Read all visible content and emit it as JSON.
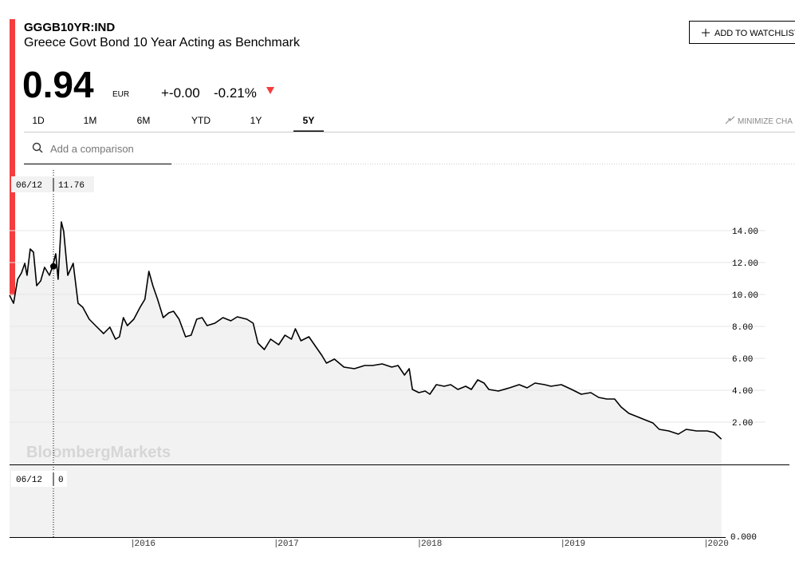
{
  "header": {
    "ticker": "GGGB10YR:IND",
    "name": "Greece Govt Bond 10 Year Acting as Benchmark",
    "price": 0.94,
    "currency": "EUR",
    "change": "+-0.00",
    "change_pct": "-0.21%",
    "watchlist_button": "ADD TO WATCHLIST",
    "minimize": "MINIMIZE CHA"
  },
  "tabs": [
    "1D",
    "1M",
    "6M",
    "YTD",
    "1Y",
    "5Y"
  ],
  "active_tab": "5Y",
  "comparison_placeholder": "Add a comparison",
  "watermark": "BloombergMarkets",
  "chart_data": {
    "type": "line",
    "color": "#000000",
    "grid": true,
    "x": [
      2015.14,
      2015.168,
      2015.196,
      2015.223,
      2015.246,
      2015.262,
      2015.284,
      2015.307,
      2015.329,
      2015.357,
      2015.384,
      2015.418,
      2015.44,
      2015.462,
      2015.479,
      2015.501,
      2015.518,
      2015.546,
      2015.584,
      2015.618,
      2015.651,
      2015.696,
      2015.74,
      2015.796,
      2015.84,
      2015.879,
      2015.907,
      2015.934,
      2015.962,
      2016.007,
      2016.051,
      2016.084,
      2016.112,
      2016.14,
      2016.173,
      2016.212,
      2016.251,
      2016.284,
      2016.323,
      2016.368,
      2016.407,
      2016.446,
      2016.484,
      2016.518,
      2016.573,
      2016.629,
      2016.684,
      2016.729,
      2016.796,
      2016.84,
      2016.873,
      2016.918,
      2016.962,
      2017.018,
      2017.062,
      2017.107,
      2017.134,
      2017.173,
      2017.229,
      2017.279,
      2017.318,
      2017.351,
      2017.407,
      2017.473,
      2017.546,
      2017.618,
      2017.673,
      2017.74,
      2017.807,
      2017.851,
      2017.896,
      2017.929,
      2017.951,
      2017.996,
      2018.04,
      2018.073,
      2018.118,
      2018.173,
      2018.218,
      2018.268,
      2018.323,
      2018.362,
      2018.407,
      2018.451,
      2018.484,
      2018.551,
      2018.629,
      2018.696,
      2018.751,
      2018.807,
      2018.873,
      2018.918,
      2018.99,
      2019.062,
      2019.129,
      2019.196,
      2019.251,
      2019.307,
      2019.362,
      2019.407,
      2019.462,
      2019.518,
      2019.573,
      2019.629,
      2019.673,
      2019.74,
      2019.807,
      2019.862,
      2019.934,
      2020.007,
      2020.057,
      2020.107
    ],
    "values": [
      9.95,
      9.45,
      10.95,
      11.35,
      11.95,
      11.2,
      12.85,
      12.65,
      10.55,
      10.85,
      11.7,
      11.2,
      11.75,
      12.55,
      10.95,
      14.55,
      13.95,
      11.2,
      11.95,
      9.45,
      9.2,
      8.45,
      8.05,
      7.55,
      7.95,
      7.2,
      7.35,
      8.55,
      8.05,
      8.45,
      9.2,
      9.7,
      11.45,
      10.55,
      9.7,
      8.55,
      8.85,
      8.95,
      8.45,
      7.35,
      7.45,
      8.45,
      8.55,
      8.05,
      8.2,
      8.55,
      8.35,
      8.6,
      8.45,
      8.2,
      6.95,
      6.55,
      7.2,
      6.85,
      7.45,
      7.2,
      7.85,
      7.1,
      7.35,
      6.7,
      6.2,
      5.7,
      5.95,
      5.45,
      5.35,
      5.55,
      5.55,
      5.65,
      5.45,
      5.55,
      4.95,
      5.35,
      4.05,
      3.85,
      3.95,
      3.75,
      4.35,
      4.25,
      4.35,
      4.05,
      4.25,
      4.05,
      4.65,
      4.45,
      4.05,
      3.95,
      4.15,
      4.35,
      4.15,
      4.45,
      4.35,
      4.25,
      4.35,
      4.05,
      3.75,
      3.85,
      3.55,
      3.45,
      3.45,
      2.95,
      2.55,
      2.35,
      2.15,
      1.95,
      1.55,
      1.45,
      1.25,
      1.55,
      1.45,
      1.45,
      1.35,
      0.94
    ],
    "xlim": [
      2015.14,
      2020.12
    ],
    "xticks": [
      2016,
      2017,
      2018,
      2019,
      2020
    ],
    "ylim": [
      -0.65,
      18.1
    ],
    "yticks": [
      {
        "value": 2,
        "label": "2.00"
      },
      {
        "value": 4,
        "label": "4.00"
      },
      {
        "value": 6,
        "label": "6.00"
      },
      {
        "value": 8,
        "label": "8.00"
      },
      {
        "value": 10,
        "label": "10.00"
      },
      {
        "value": 12,
        "label": "12.00"
      },
      {
        "value": 14,
        "label": "14.00"
      }
    ],
    "crosshair": {
      "date": "06/12",
      "value": 11.76
    }
  },
  "volume_pane": {
    "ticks": [
      {
        "value": 0,
        "label": "0.000"
      }
    ],
    "tooltip_value": 0
  }
}
